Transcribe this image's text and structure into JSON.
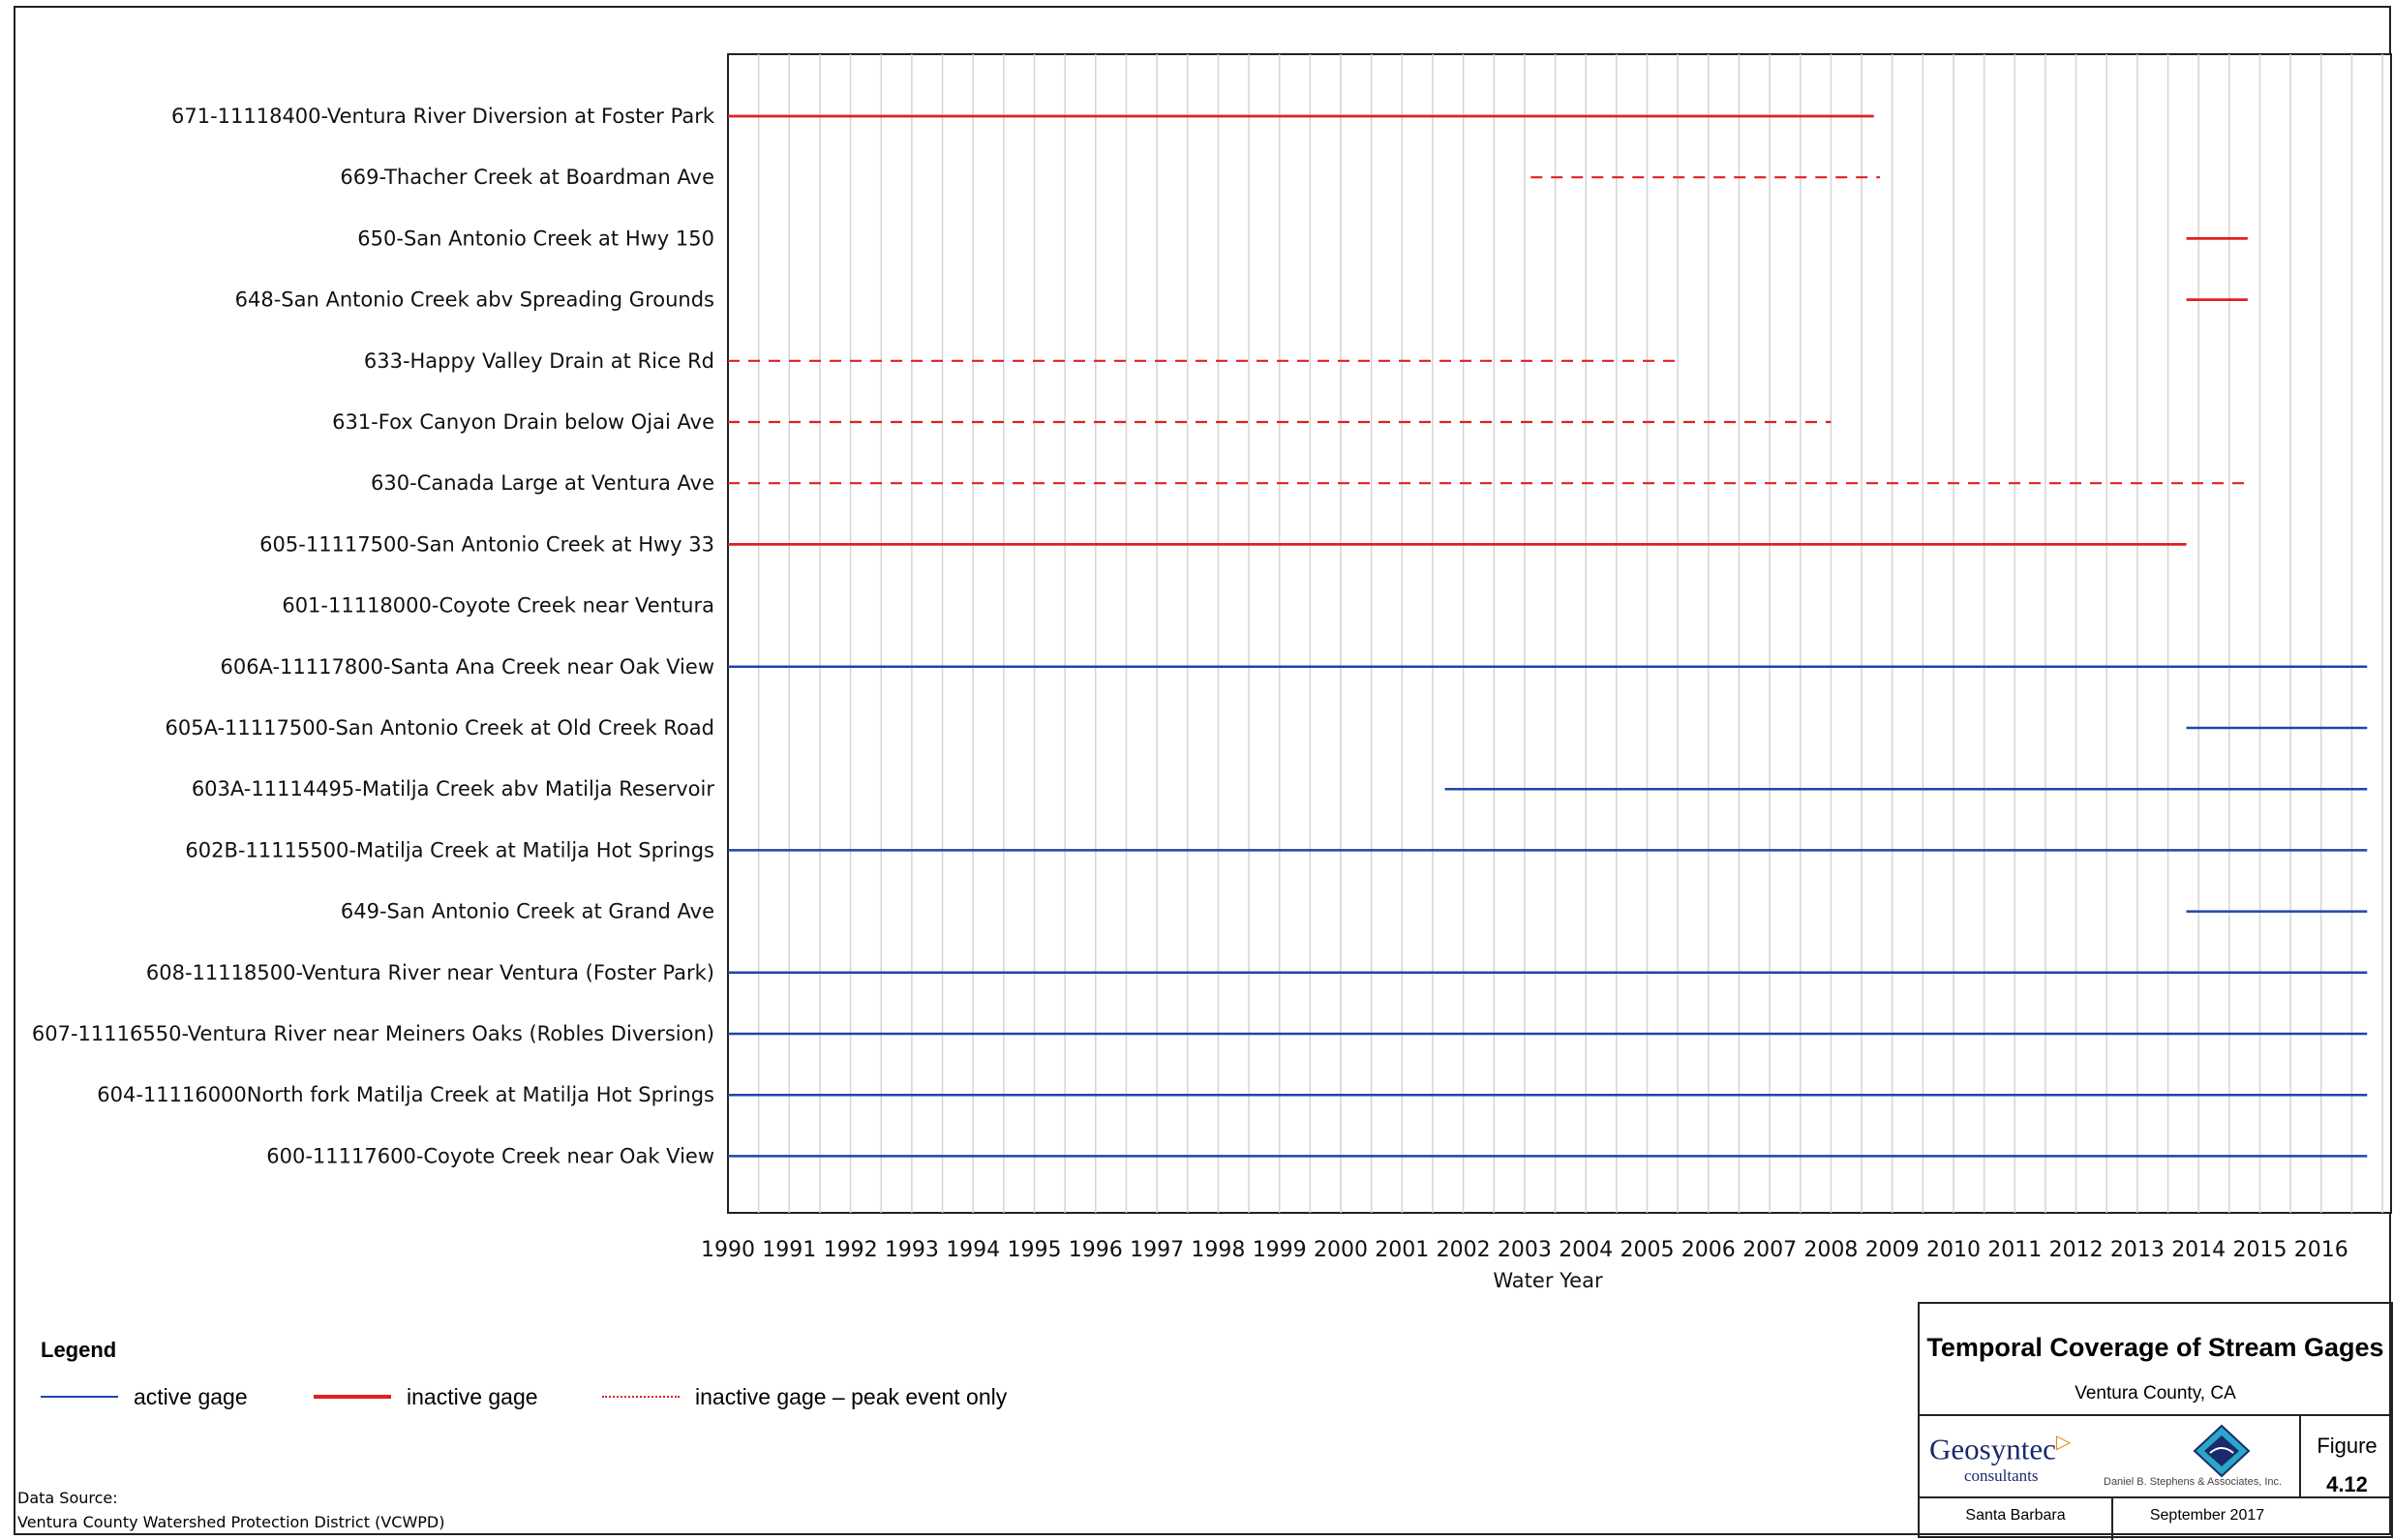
{
  "chart_data": {
    "type": "gantt",
    "xlabel": "Water Year",
    "x_ticks": [
      "1990",
      "1991",
      "1992",
      "1993",
      "1994",
      "1995",
      "1996",
      "1997",
      "1998",
      "1999",
      "2000",
      "2001",
      "2002",
      "2003",
      "2004",
      "2005",
      "2006",
      "2007",
      "2008",
      "2009",
      "2010",
      "2011",
      "2012",
      "2013",
      "2014",
      "2015",
      "2016"
    ],
    "xlim": [
      1990,
      2016.75
    ],
    "grid": true,
    "colors": {
      "active": "#2244aa",
      "inactive": "#e02020"
    },
    "gages": [
      {
        "label": "671-11118400-Ventura River Diversion at Foster Park",
        "status": "inactive",
        "start": 1990,
        "end": 2008.7
      },
      {
        "label": "669-Thacher Creek at Boardman Ave",
        "status": "peak",
        "start": 2003.1,
        "end": 2008.8
      },
      {
        "label": "650-San Antonio Creek at Hwy 150",
        "status": "inactive",
        "start": 2013.8,
        "end": 2014.8
      },
      {
        "label": "648-San Antonio Creek abv Spreading Grounds",
        "status": "inactive",
        "start": 2013.8,
        "end": 2014.8
      },
      {
        "label": "633-Happy Valley Drain at Rice Rd",
        "status": "peak",
        "start": 1990,
        "end": 2005.5
      },
      {
        "label": "631-Fox Canyon Drain below Ojai Ave",
        "status": "peak",
        "start": 1990,
        "end": 2008
      },
      {
        "label": "630-Canada Large at Ventura Ave",
        "status": "peak",
        "start": 1990,
        "end": 2014.8
      },
      {
        "label": "605-11117500-San Antonio Creek at Hwy 33",
        "status": "inactive",
        "start": 1990,
        "end": 2013.8
      },
      {
        "label": "601-11118000-Coyote Creek near Ventura",
        "status": "none",
        "start": null,
        "end": null
      },
      {
        "label": "606A-11117800-Santa Ana Creek near Oak View",
        "status": "active",
        "start": 1990,
        "end": 2016.75
      },
      {
        "label": "605A-11117500-San Antonio Creek at Old Creek Road",
        "status": "active",
        "start": 2013.8,
        "end": 2016.75
      },
      {
        "label": "603A-11114495-Matilja Creek abv Matilja Reservoir",
        "status": "active",
        "start": 2001.7,
        "end": 2016.75
      },
      {
        "label": "602B-11115500-Matilja Creek at Matilja Hot Springs",
        "status": "active",
        "start": 1990,
        "end": 2016.75
      },
      {
        "label": "649-San Antonio Creek at Grand Ave",
        "status": "active",
        "start": 2013.8,
        "end": 2016.75
      },
      {
        "label": "608-11118500-Ventura River near Ventura (Foster Park)",
        "status": "active",
        "start": 1990,
        "end": 2016.75
      },
      {
        "label": "607-11116550-Ventura River near Meiners Oaks (Robles Diversion)",
        "status": "active",
        "start": 1990,
        "end": 2016.75
      },
      {
        "label": "604-11116000North fork Matilja Creek at Matilja Hot Springs",
        "status": "active",
        "start": 1990,
        "end": 2016.75
      },
      {
        "label": "600-11117600-Coyote Creek near Oak View",
        "status": "active",
        "start": 1990,
        "end": 2016.75
      }
    ]
  },
  "legend": {
    "title": "Legend",
    "active": "active gage",
    "inactive": "inactive gage",
    "peak": "inactive gage – peak event only"
  },
  "source": {
    "line1": "Data Source:",
    "line2": "Ventura County Watershed Protection District (VCWPD)"
  },
  "titleblock": {
    "title": "Temporal Coverage of Stream Gages",
    "subtitle": "Ventura County, CA",
    "company": "Geosyntec",
    "company_sub": "consultants",
    "partner": "Daniel B. Stephens & Associates, Inc.",
    "figure_label": "Figure",
    "figure_number": "4.12",
    "location": "Santa Barbara",
    "date": "September 2017"
  }
}
